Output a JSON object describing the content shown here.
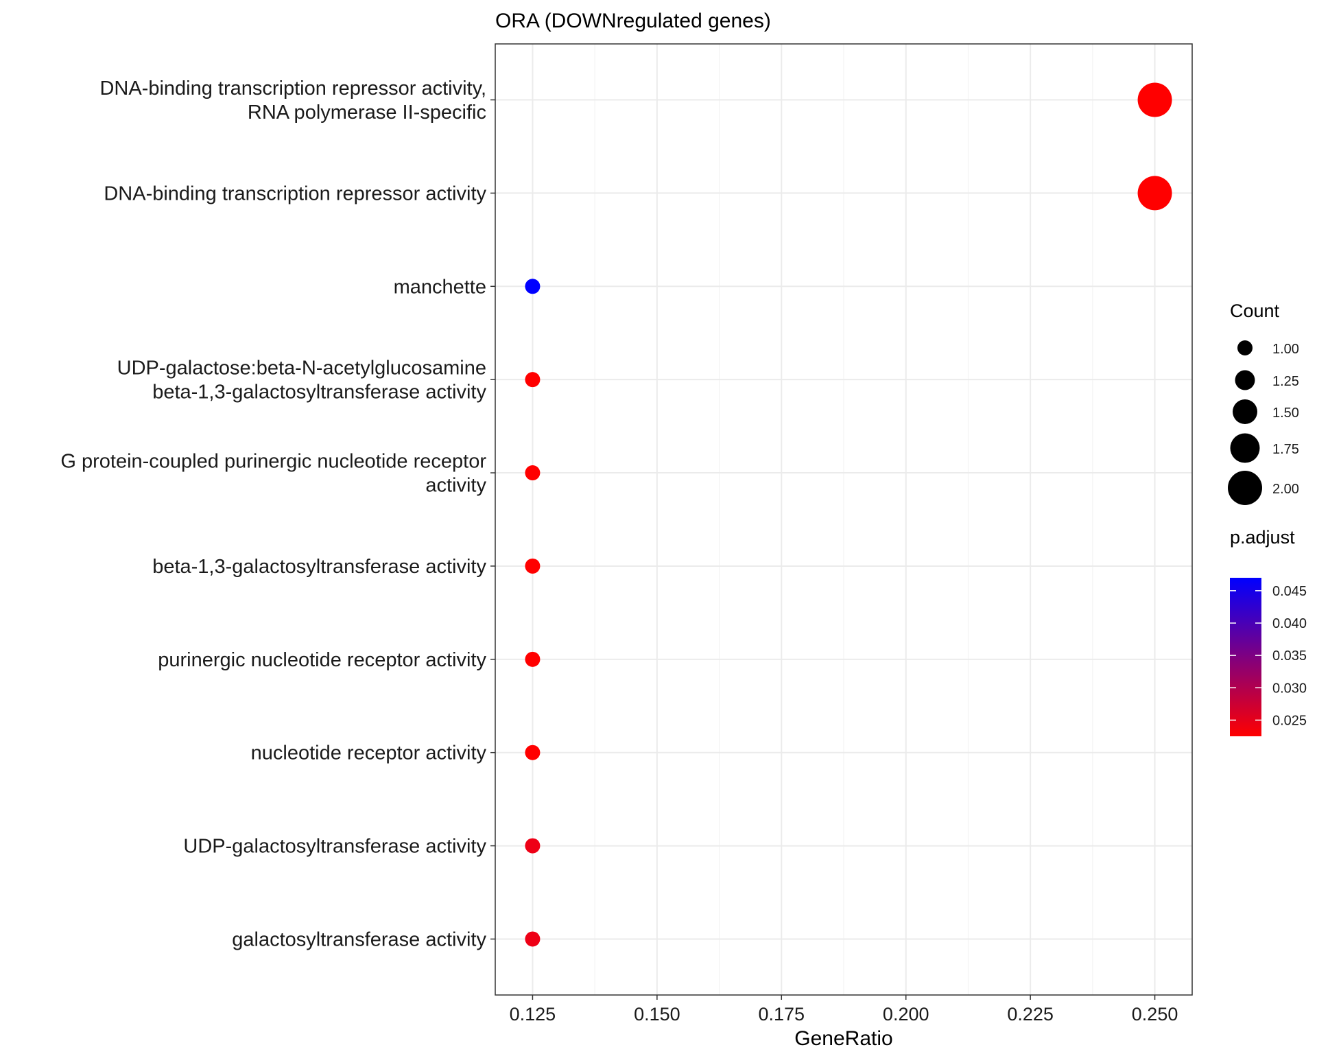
{
  "chart_data": {
    "type": "scatter",
    "title": "ORA (DOWNregulated genes)",
    "xlabel": "GeneRatio",
    "ylabel": "",
    "xlim": [
      0.1175,
      0.2575
    ],
    "x_ticks": [
      "0.125",
      "0.150",
      "0.175",
      "0.200",
      "0.225",
      "0.250"
    ],
    "grid": true,
    "categories": [
      [
        "DNA-binding transcription repressor activity,",
        "RNA polymerase II-specific"
      ],
      [
        "DNA-binding transcription repressor activity"
      ],
      [
        "manchette"
      ],
      [
        "UDP-galactose:beta-N-acetylglucosamine",
        "beta-1,3-galactosyltransferase activity"
      ],
      [
        "G protein-coupled purinergic nucleotide receptor",
        "activity"
      ],
      [
        "beta-1,3-galactosyltransferase activity"
      ],
      [
        "purinergic nucleotide receptor activity"
      ],
      [
        "nucleotide receptor activity"
      ],
      [
        "UDP-galactosyltransferase activity"
      ],
      [
        "galactosyltransferase activity"
      ]
    ],
    "points": [
      {
        "x": 0.25,
        "count": 2,
        "p_adjust": 0.0225,
        "color": "#ff0000"
      },
      {
        "x": 0.25,
        "count": 2,
        "p_adjust": 0.0225,
        "color": "#ff0000"
      },
      {
        "x": 0.125,
        "count": 1,
        "p_adjust": 0.047,
        "color": "#0000ff"
      },
      {
        "x": 0.125,
        "count": 1,
        "p_adjust": 0.0225,
        "color": "#ff0000"
      },
      {
        "x": 0.125,
        "count": 1,
        "p_adjust": 0.0225,
        "color": "#ff0000"
      },
      {
        "x": 0.125,
        "count": 1,
        "p_adjust": 0.0225,
        "color": "#ff0000"
      },
      {
        "x": 0.125,
        "count": 1,
        "p_adjust": 0.0225,
        "color": "#ff0000"
      },
      {
        "x": 0.125,
        "count": 1,
        "p_adjust": 0.0225,
        "color": "#ff0000"
      },
      {
        "x": 0.125,
        "count": 1,
        "p_adjust": 0.026,
        "color": "#ee0016"
      },
      {
        "x": 0.125,
        "count": 1,
        "p_adjust": 0.026,
        "color": "#ee0016"
      }
    ],
    "legend": {
      "placement": "right",
      "size": {
        "title": "Count",
        "values": [
          1.0,
          1.25,
          1.5,
          1.75,
          2.0
        ],
        "labels": [
          "1.00",
          "1.25",
          "1.50",
          "1.75",
          "2.00"
        ]
      },
      "color": {
        "title": "p.adjust",
        "range": [
          0.0225,
          0.047
        ],
        "values": [
          0.045,
          0.04,
          0.035,
          0.03,
          0.025
        ],
        "labels": [
          "0.045",
          "0.040",
          "0.035",
          "0.030",
          "0.025"
        ],
        "low_color": "#ff0000",
        "high_color": "#0000ff"
      }
    }
  }
}
